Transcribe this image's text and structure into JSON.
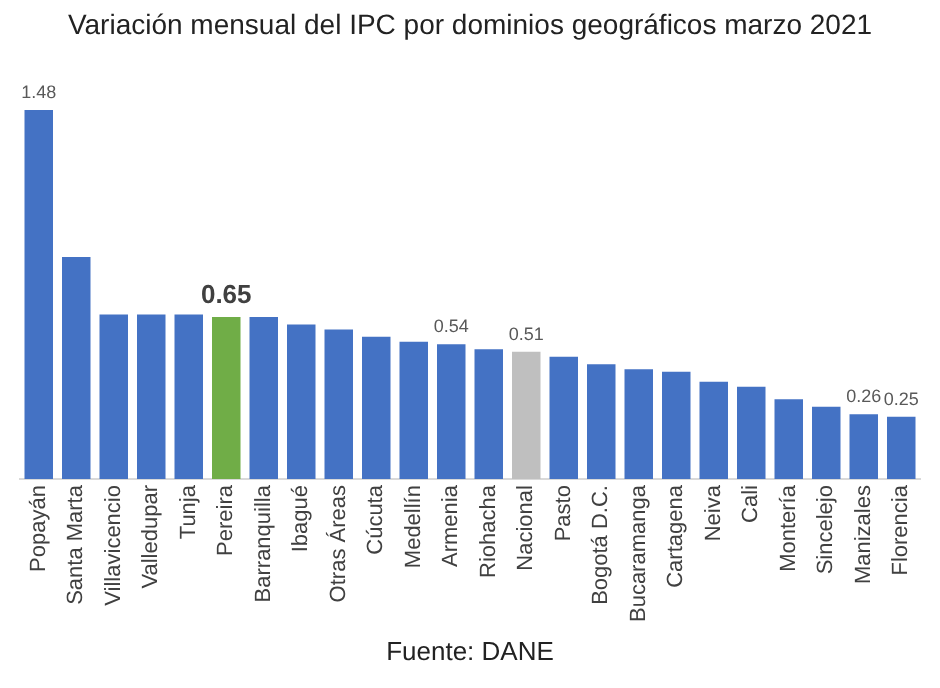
{
  "chart_data": {
    "type": "bar",
    "title": "Variación mensual del IPC por dominios geográficos marzo 2021",
    "categories": [
      "Popayán",
      "Santa Marta",
      "Villavicencio",
      "Valledupar",
      "Tunja",
      "Pereira",
      "Barranquilla",
      "Ibagué",
      "Otras Áreas",
      "Cúcuta",
      "Medellín",
      "Armenia",
      "Riohacha",
      "Nacional",
      "Pasto",
      "Bogotá D.C.",
      "Bucaramanga",
      "Cartagena",
      "Neiva",
      "Cali",
      "Montería",
      "Sincelejo",
      "Manizales",
      "Florencia"
    ],
    "values": [
      1.48,
      0.89,
      0.66,
      0.66,
      0.66,
      0.65,
      0.65,
      0.62,
      0.6,
      0.57,
      0.55,
      0.54,
      0.52,
      0.51,
      0.49,
      0.46,
      0.44,
      0.43,
      0.39,
      0.37,
      0.32,
      0.29,
      0.26,
      0.25
    ],
    "colors": [
      "#4472c4",
      "#4472c4",
      "#4472c4",
      "#4472c4",
      "#4472c4",
      "#70ad47",
      "#4472c4",
      "#4472c4",
      "#4472c4",
      "#4472c4",
      "#4472c4",
      "#4472c4",
      "#4472c4",
      "#bfbfbf",
      "#4472c4",
      "#4472c4",
      "#4472c4",
      "#4472c4",
      "#4472c4",
      "#4472c4",
      "#4472c4",
      "#4472c4",
      "#4472c4",
      "#4472c4"
    ],
    "value_labels": [
      "1.48",
      null,
      null,
      null,
      null,
      "0.65",
      null,
      null,
      null,
      null,
      null,
      "0.54",
      null,
      "0.51",
      null,
      null,
      null,
      null,
      null,
      null,
      null,
      null,
      "0.26",
      "0.25"
    ],
    "annotations": [
      "Fuente: DANE"
    ],
    "grid": false,
    "legend": false
  }
}
